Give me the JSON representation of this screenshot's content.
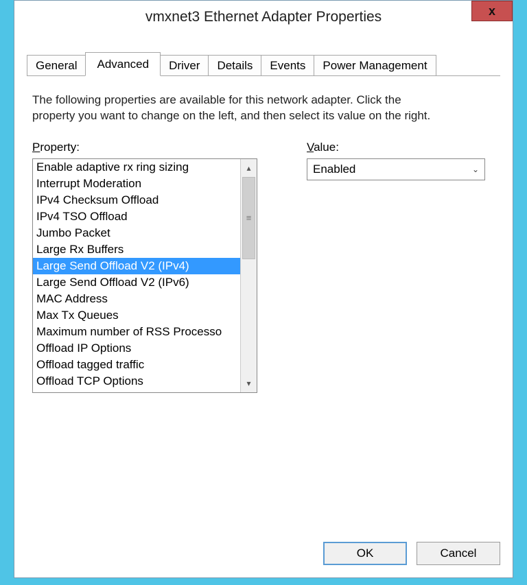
{
  "window": {
    "title": "vmxnet3 Ethernet Adapter Properties",
    "close_glyph": "x",
    "frame_color": "#4fc4e6",
    "close_bg": "#c75050"
  },
  "tabs": {
    "items": [
      {
        "label": "General",
        "active": false
      },
      {
        "label": "Advanced",
        "active": true
      },
      {
        "label": "Driver",
        "active": false
      },
      {
        "label": "Details",
        "active": false
      },
      {
        "label": "Events",
        "active": false
      },
      {
        "label": "Power Management",
        "active": false
      }
    ]
  },
  "description": "The following properties are available for this network adapter. Click the property you want to change on the left, and then select its value on the right.",
  "property": {
    "label": "Property:",
    "selected_index": 6,
    "items": [
      "Enable adaptive rx ring sizing",
      "Interrupt Moderation",
      "IPv4 Checksum Offload",
      "IPv4 TSO Offload",
      "Jumbo Packet",
      "Large Rx Buffers",
      "Large Send Offload V2 (IPv4)",
      "Large Send Offload V2 (IPv6)",
      "MAC Address",
      "Max Tx Queues",
      "Maximum number of RSS Processo",
      "Offload IP Options",
      "Offload tagged traffic",
      "Offload TCP Options"
    ],
    "selection_bg": "#3399ff",
    "selection_fg": "#ffffff"
  },
  "value": {
    "label": "Value:",
    "selected": "Enabled"
  },
  "buttons": {
    "ok": "OK",
    "cancel": "Cancel"
  },
  "scroll": {
    "up_glyph": "▴",
    "down_glyph": "▾",
    "grip_glyph": "≡"
  }
}
